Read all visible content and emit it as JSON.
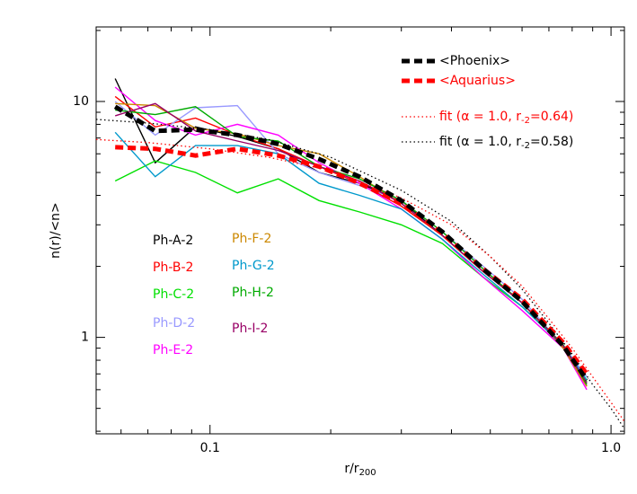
{
  "chart_data": {
    "type": "line",
    "xlog": true,
    "ylog": true,
    "xlabel": [
      "r/r",
      "200"
    ],
    "ylabel": "n(r)/<n>",
    "xlim": [
      0.052,
      1.08
    ],
    "ylim": [
      0.39,
      20.7
    ],
    "xticks": [
      0.1,
      {
        "value": 1,
        "label": "1.0"
      }
    ],
    "yticks": [
      1,
      10
    ],
    "xminorticks": [
      0.06,
      0.07,
      0.08,
      0.09,
      0.2,
      0.3,
      0.4,
      0.5,
      0.6,
      0.7,
      0.8,
      0.9
    ],
    "yminorticks": [
      0.4,
      0.5,
      0.6,
      0.7,
      0.8,
      0.9,
      2,
      3,
      4,
      5,
      6,
      7,
      8,
      9,
      20
    ],
    "series": [
      {
        "name": "Ph-A-2",
        "color": "#000000",
        "style": "solid",
        "x": [
          0.058,
          0.073,
          0.092,
          0.117,
          0.148,
          0.187,
          0.236,
          0.3,
          0.38,
          0.48,
          0.6,
          0.76,
          0.87
        ],
        "values": [
          12.5,
          5.5,
          7.8,
          7.1,
          6.3,
          5.0,
          4.5,
          3.8,
          2.7,
          1.9,
          1.4,
          0.92,
          0.64
        ]
      },
      {
        "name": "Ph-B-2",
        "color": "#ff0000",
        "style": "solid",
        "x": [
          0.058,
          0.073,
          0.092,
          0.117,
          0.148,
          0.187,
          0.236,
          0.3,
          0.38,
          0.48,
          0.6,
          0.76,
          0.87
        ],
        "values": [
          10.5,
          7.8,
          8.5,
          7.2,
          6.3,
          5.3,
          4.5,
          3.6,
          2.7,
          1.9,
          1.4,
          0.9,
          0.62
        ]
      },
      {
        "name": "Ph-C-2",
        "color": "#00e000",
        "style": "solid",
        "x": [
          0.058,
          0.073,
          0.092,
          0.117,
          0.148,
          0.187,
          0.236,
          0.3,
          0.38,
          0.48,
          0.6,
          0.76,
          0.87
        ],
        "values": [
          4.6,
          5.6,
          5.0,
          4.1,
          4.7,
          3.8,
          3.4,
          3.0,
          2.5,
          1.8,
          1.35,
          0.92,
          0.65
        ]
      },
      {
        "name": "Ph-D-2",
        "color": "#9999ff",
        "style": "solid",
        "x": [
          0.058,
          0.073,
          0.092,
          0.117,
          0.148,
          0.187,
          0.236,
          0.3,
          0.38,
          0.48,
          0.6,
          0.76,
          0.87
        ],
        "values": [
          10,
          7.2,
          9.4,
          9.6,
          6.0,
          5.0,
          4.4,
          3.8,
          2.8,
          2.0,
          1.45,
          0.92,
          0.68
        ]
      },
      {
        "name": "Ph-E-2",
        "color": "#ff00ff",
        "style": "solid",
        "x": [
          0.058,
          0.073,
          0.092,
          0.117,
          0.148,
          0.187,
          0.236,
          0.3,
          0.38,
          0.48,
          0.6,
          0.76,
          0.87
        ],
        "values": [
          11.5,
          8.3,
          7.2,
          8.0,
          7.2,
          5.5,
          4.5,
          3.5,
          2.6,
          1.8,
          1.3,
          0.9,
          0.6
        ]
      },
      {
        "name": "Ph-F-2",
        "color": "#cc8800",
        "style": "solid",
        "x": [
          0.058,
          0.073,
          0.092,
          0.117,
          0.148,
          0.187,
          0.236,
          0.3,
          0.38,
          0.48,
          0.6,
          0.76,
          0.87
        ],
        "values": [
          9.8,
          9.6,
          7.7,
          7.3,
          6.5,
          6.0,
          4.8,
          3.7,
          2.7,
          1.9,
          1.4,
          0.9,
          0.62
        ]
      },
      {
        "name": "Ph-G-2",
        "color": "#0099cc",
        "style": "solid",
        "x": [
          0.058,
          0.073,
          0.092,
          0.117,
          0.148,
          0.187,
          0.236,
          0.3,
          0.38,
          0.48,
          0.6,
          0.76,
          0.87
        ],
        "values": [
          7.4,
          4.8,
          6.5,
          6.5,
          6.0,
          4.5,
          4.0,
          3.5,
          2.6,
          1.85,
          1.35,
          0.92,
          0.66
        ]
      },
      {
        "name": "Ph-H-2",
        "color": "#00aa00",
        "style": "solid",
        "x": [
          0.058,
          0.073,
          0.092,
          0.117,
          0.148,
          0.187,
          0.236,
          0.3,
          0.38,
          0.48,
          0.6,
          0.76,
          0.87
        ],
        "values": [
          9.2,
          8.8,
          9.5,
          7.1,
          6.8,
          5.3,
          4.7,
          3.8,
          2.8,
          1.95,
          1.4,
          0.93,
          0.63
        ]
      },
      {
        "name": "Ph-I-2",
        "color": "#990066",
        "style": "solid",
        "x": [
          0.058,
          0.073,
          0.092,
          0.117,
          0.148,
          0.187,
          0.236,
          0.3,
          0.38,
          0.48,
          0.6,
          0.76,
          0.87
        ],
        "values": [
          8.7,
          9.8,
          7.5,
          6.8,
          6.2,
          5.3,
          4.6,
          3.7,
          2.7,
          1.9,
          1.4,
          0.92,
          0.64
        ]
      },
      {
        "name": [
          "fit (α = 1.0, r",
          "-2",
          "=0.58)"
        ],
        "color": "#000000",
        "style": "dotted",
        "x": [
          0.052,
          0.07,
          0.1,
          0.14,
          0.2,
          0.3,
          0.4,
          0.5,
          0.6,
          0.7,
          0.8,
          0.9,
          1.0,
          1.08
        ],
        "values": [
          8.4,
          8.1,
          7.6,
          6.9,
          5.8,
          4.2,
          3.1,
          2.2,
          1.6,
          1.15,
          0.85,
          0.63,
          0.5,
          0.41
        ]
      },
      {
        "name": [
          "fit (α = 1.0, r",
          "-2",
          "=0.64)"
        ],
        "color": "#ff0000",
        "style": "dotted",
        "x": [
          0.052,
          0.07,
          0.1,
          0.14,
          0.2,
          0.3,
          0.4,
          0.5,
          0.6,
          0.7,
          0.8,
          0.9,
          1.0,
          1.08
        ],
        "values": [
          6.9,
          6.7,
          6.3,
          5.8,
          5.1,
          3.9,
          3.0,
          2.2,
          1.65,
          1.2,
          0.9,
          0.68,
          0.53,
          0.44
        ]
      },
      {
        "name": "<Aquarius>",
        "color": "#ff0000",
        "style": "dashed",
        "x": [
          0.058,
          0.073,
          0.092,
          0.117,
          0.148,
          0.187,
          0.236,
          0.3,
          0.38,
          0.48,
          0.6,
          0.76,
          0.87
        ],
        "values": [
          6.4,
          6.3,
          5.9,
          6.3,
          5.9,
          5.3,
          4.5,
          3.7,
          2.75,
          1.95,
          1.45,
          0.95,
          0.7
        ]
      },
      {
        "name": "<Phoenix>",
        "color": "#000000",
        "style": "dashed",
        "x": [
          0.058,
          0.073,
          0.092,
          0.117,
          0.148,
          0.187,
          0.236,
          0.3,
          0.38,
          0.48,
          0.6,
          0.76,
          0.87
        ],
        "values": [
          9.5,
          7.5,
          7.6,
          7.2,
          6.6,
          5.7,
          4.8,
          3.8,
          2.8,
          1.95,
          1.42,
          0.92,
          0.66
        ]
      }
    ]
  }
}
